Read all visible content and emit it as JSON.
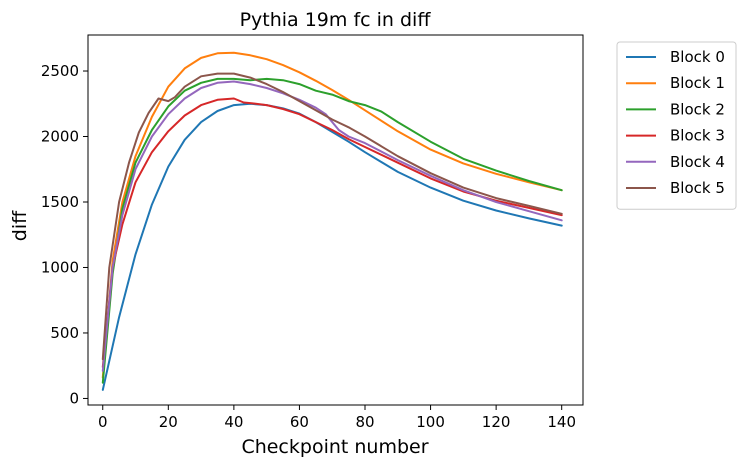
{
  "chart_data": {
    "type": "line",
    "title": "Pythia 19m fc in diff",
    "xlabel": "Checkpoint number",
    "ylabel": "diff",
    "xlim": [
      -4.5,
      146.5
    ],
    "ylim": [
      -50,
      2775
    ],
    "xticks": [
      0,
      20,
      40,
      60,
      80,
      100,
      120,
      140
    ],
    "yticks": [
      0,
      500,
      1000,
      1500,
      2000,
      2500
    ],
    "grid": false,
    "legend_position": "outside-top-right",
    "series": [
      {
        "name": "Block 0",
        "color": "#1f77b4",
        "x": [
          0,
          5,
          10,
          15,
          20,
          25,
          30,
          35,
          40,
          45,
          50,
          55,
          60,
          65,
          70,
          75,
          80,
          90,
          100,
          110,
          120,
          130,
          140
        ],
        "y": [
          65,
          620,
          1100,
          1480,
          1770,
          1975,
          2110,
          2195,
          2240,
          2250,
          2240,
          2215,
          2175,
          2110,
          2035,
          1960,
          1880,
          1730,
          1610,
          1510,
          1435,
          1375,
          1320
        ]
      },
      {
        "name": "Block 1",
        "color": "#ff7f0e",
        "x": [
          0,
          3,
          6,
          10,
          15,
          20,
          25,
          30,
          35,
          40,
          45,
          50,
          55,
          60,
          65,
          70,
          75,
          80,
          90,
          100,
          110,
          120,
          130,
          140
        ],
        "y": [
          160,
          1050,
          1500,
          1850,
          2150,
          2380,
          2520,
          2600,
          2635,
          2640,
          2620,
          2590,
          2545,
          2490,
          2425,
          2355,
          2280,
          2200,
          2040,
          1900,
          1795,
          1715,
          1650,
          1590
        ]
      },
      {
        "name": "Block 2",
        "color": "#2ca02c",
        "x": [
          0,
          3,
          6,
          10,
          15,
          20,
          25,
          30,
          35,
          40,
          45,
          50,
          55,
          60,
          65,
          70,
          75,
          80,
          85,
          90,
          100,
          110,
          120,
          130,
          140
        ],
        "y": [
          120,
          950,
          1450,
          1800,
          2050,
          2230,
          2350,
          2410,
          2440,
          2440,
          2430,
          2440,
          2430,
          2400,
          2350,
          2320,
          2270,
          2240,
          2190,
          2110,
          1960,
          1830,
          1740,
          1660,
          1590
        ]
      },
      {
        "name": "Block 3",
        "color": "#d62728",
        "x": [
          0,
          3,
          6,
          10,
          15,
          20,
          25,
          30,
          35,
          40,
          43,
          45,
          50,
          55,
          60,
          65,
          70,
          75,
          80,
          90,
          100,
          110,
          120,
          130,
          140
        ],
        "y": [
          240,
          1000,
          1330,
          1650,
          1880,
          2040,
          2160,
          2240,
          2280,
          2290,
          2260,
          2255,
          2240,
          2210,
          2170,
          2110,
          2050,
          1980,
          1920,
          1800,
          1680,
          1580,
          1510,
          1455,
          1400
        ]
      },
      {
        "name": "Block 4",
        "color": "#9467bd",
        "x": [
          0,
          3,
          6,
          10,
          15,
          20,
          25,
          30,
          35,
          40,
          45,
          50,
          55,
          60,
          65,
          68,
          72,
          75,
          80,
          90,
          100,
          110,
          120,
          130,
          140
        ],
        "y": [
          210,
          1000,
          1400,
          1750,
          2000,
          2170,
          2290,
          2370,
          2410,
          2420,
          2400,
          2370,
          2330,
          2280,
          2220,
          2170,
          2050,
          2000,
          1950,
          1820,
          1700,
          1590,
          1500,
          1430,
          1360
        ]
      },
      {
        "name": "Block 5",
        "color": "#8c564b",
        "x": [
          0,
          2,
          5,
          8,
          11,
          14,
          17,
          20,
          22,
          25,
          30,
          35,
          40,
          45,
          50,
          55,
          60,
          65,
          70,
          75,
          80,
          90,
          100,
          110,
          120,
          130,
          140
        ],
        "y": [
          300,
          1000,
          1500,
          1800,
          2030,
          2180,
          2290,
          2270,
          2300,
          2380,
          2460,
          2480,
          2480,
          2450,
          2400,
          2340,
          2270,
          2200,
          2130,
          2070,
          2000,
          1850,
          1720,
          1610,
          1530,
          1470,
          1410
        ]
      }
    ]
  }
}
